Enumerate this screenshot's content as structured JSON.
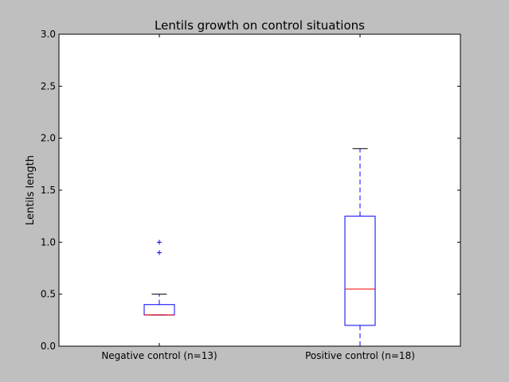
{
  "chart_data": {
    "type": "box",
    "title": "Lentils growth on control situations",
    "xlabel": "",
    "ylabel": "Lentils length",
    "ylim": [
      0.0,
      3.0
    ],
    "yticks": [
      "0.0",
      "0.5",
      "1.0",
      "1.5",
      "2.0",
      "2.5",
      "3.0"
    ],
    "grid": false,
    "categories": [
      "Negative control (n=13)",
      "Positive control (n=18)"
    ],
    "boxes": [
      {
        "whisker_low": 0.3,
        "q1": 0.3,
        "median": 0.3,
        "q3": 0.4,
        "whisker_high": 0.5,
        "outliers": [
          0.9,
          1.0
        ]
      },
      {
        "whisker_low": 0.0,
        "q1": 0.2,
        "median": 0.55,
        "q3": 1.25,
        "whisker_high": 1.9,
        "outliers": []
      }
    ],
    "colors": {
      "box": "#0000ff",
      "median": "#ff0000",
      "whisker_cap": "#000000",
      "flier": "#0000ff",
      "background": "#bfbfbf",
      "plot": "#ffffff"
    }
  }
}
